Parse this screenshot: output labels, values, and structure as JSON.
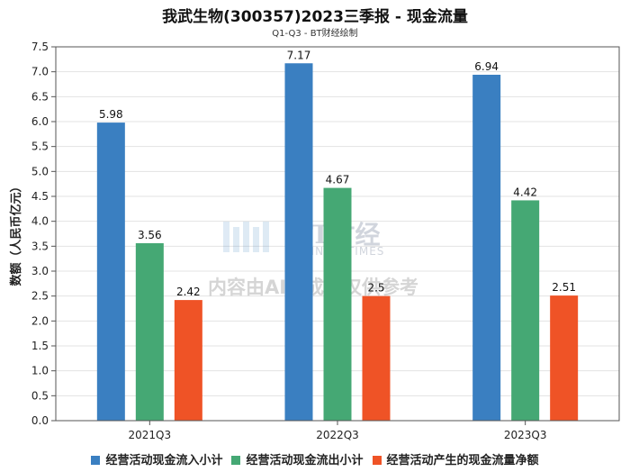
{
  "title": "我武生物(300357)2023三季报 - 现金流量",
  "subtitle": "Q1-Q3 - BT财经绘制",
  "watermark": {
    "logo": "BT财经",
    "logo_sub": "BUSINESSTIMES",
    "text": "内容由AI生成，仅供参考"
  },
  "chart_data": {
    "type": "bar",
    "categories": [
      "2021Q3",
      "2022Q3",
      "2023Q3"
    ],
    "series": [
      {
        "name": "经营活动现金流入小计",
        "color": "#3a7fc1",
        "values": [
          5.98,
          7.17,
          6.94
        ],
        "labels": [
          "5.98",
          "7.17",
          "6.94"
        ]
      },
      {
        "name": "经营活动现金流出小计",
        "color": "#45a874",
        "values": [
          3.56,
          4.67,
          4.42
        ],
        "labels": [
          "3.56",
          "4.67",
          "4.42"
        ]
      },
      {
        "name": "经营活动产生的现金流量净额",
        "color": "#ef5326",
        "values": [
          2.42,
          2.5,
          2.51
        ],
        "labels": [
          "2.42",
          "2.5",
          "2.51"
        ]
      }
    ],
    "ylabel": "数额（人民币亿元）",
    "ylim": [
      0,
      7.5
    ],
    "yticks": [
      "0.0",
      "0.5",
      "1.0",
      "1.5",
      "2.0",
      "2.5",
      "3.0",
      "3.5",
      "4.0",
      "4.5",
      "5.0",
      "5.5",
      "6.0",
      "6.5",
      "7.0",
      "7.5"
    ],
    "grid": true,
    "legend_position": "bottom"
  }
}
